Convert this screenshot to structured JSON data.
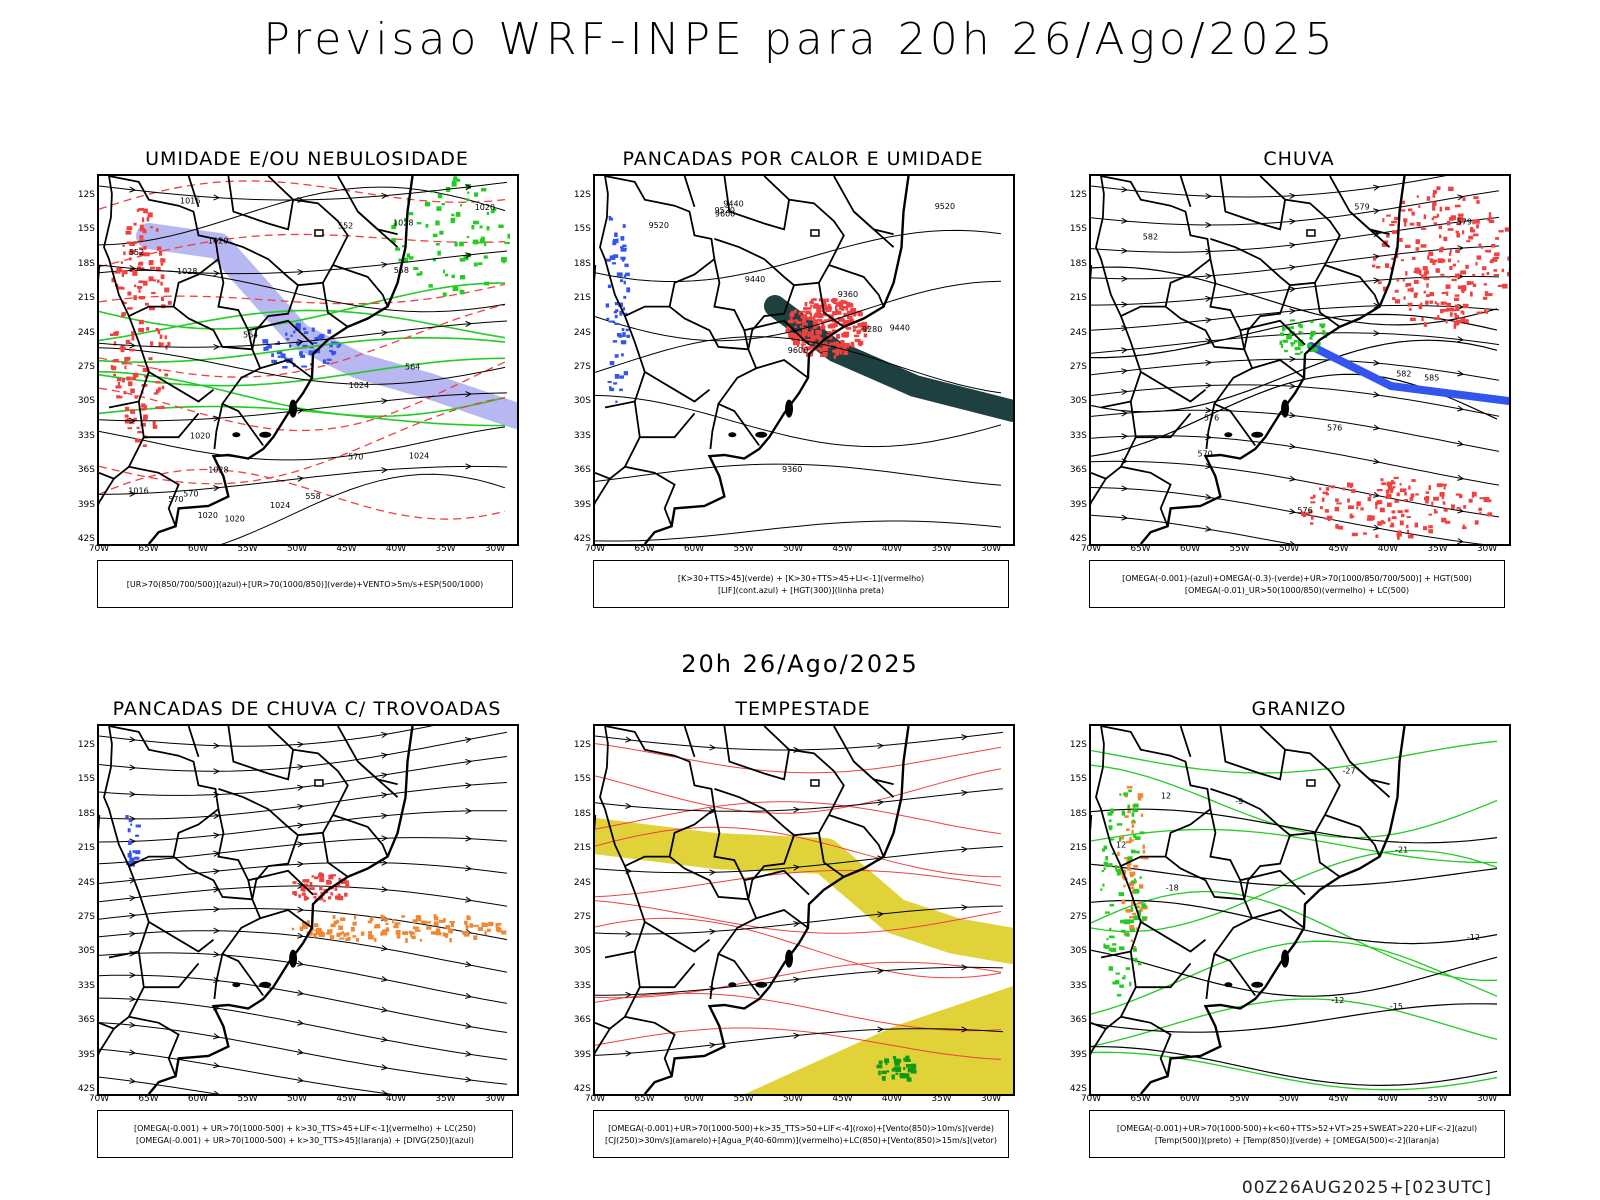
{
  "header": {
    "title": "Previsao WRF-INPE  para 20h 26/Ago/2025"
  },
  "middle": {
    "date": "20h 26/Ago/2025"
  },
  "footer": {
    "stamp": "00Z26AUG2025+[023UTC]"
  },
  "axes": {
    "lat": [
      "12S",
      "15S",
      "18S",
      "21S",
      "24S",
      "27S",
      "30S",
      "33S",
      "36S",
      "39S",
      "42S"
    ],
    "lon": [
      "70W",
      "65W",
      "60W",
      "55W",
      "50W",
      "45W",
      "40W",
      "35W",
      "30W"
    ]
  },
  "colors": {
    "red": "#f04040",
    "green": "#22cc22",
    "blue": "#3355ee",
    "lavender": "#aaaaee",
    "darkteal": "#1e4040",
    "yellow": "#e2d23a",
    "orange": "#ee8833",
    "darkgreen": "#119911"
  },
  "panels": [
    {
      "title": "UMIDADE E/OU NEBULOSIDADE",
      "legend": [
        "[UR>70(850/700/500)](azul)+[UR>70(1000/850)](verde)+VENTO>5m/s+ESP(500/1000)"
      ],
      "labels": [
        "1016",
        "1020",
        "1020",
        "1024",
        "1028",
        "1024",
        "1020",
        "1028",
        "1016",
        "570",
        "570",
        "564",
        "558",
        "552",
        "570",
        "564",
        "558",
        "552",
        "1028",
        "1020",
        "1020",
        "1024"
      ]
    },
    {
      "title": "PANCADAS POR CALOR E UMIDADE",
      "legend": [
        "[K>30+TTS>45](verde) + [K>30+TTS>45+LI<-1](vermelho)",
        "[LIF](cont.azul) + [HGT(300)](linha preta)"
      ],
      "labels": [
        "9600",
        "9520",
        "9440",
        "9520",
        "9600",
        "9520",
        "9440",
        "9440",
        "9360",
        "9360",
        "9280"
      ]
    },
    {
      "title": "CHUVA",
      "legend": [
        "[OMEGA(-0.001)-(azul)+OMEGA(-0.3)-(verde)+UR>70(1000/850/700/500)] + HGT(500)",
        "[OMEGA(-0.01)_UR>50(1000/850)(vermelho) + LC(500)"
      ],
      "labels": [
        "582",
        "585",
        "576",
        "576",
        "579",
        "582",
        "579",
        "576",
        "570"
      ]
    },
    {
      "title": "PANCADAS DE CHUVA C/ TROVOADAS",
      "legend": [
        "[OMEGA(-0.001) + UR>70(1000-500) + k>30_TTS>45+LIF<-1](vermelho) + LC(250)",
        "[OMEGA(-0.001) + UR>70(1000-500) + k>30_TTS>45](laranja) + [DIVG(250)](azul)"
      ],
      "labels": []
    },
    {
      "title": "TEMPESTADE",
      "legend": [
        "[OMEGA(-0.001)+UR>70(1000-500)+k>35_TTS>50+LIF<-4](roxo)+[Vento(850)>10m/s](verde)",
        "[CJ(250)>30m/s](amarelo)+[Agua_P(40-60mm)](vermelho)+LC(850)+[Vento(850)>15m/s](vetor)"
      ],
      "labels": []
    },
    {
      "title": "GRANIZO",
      "legend": [
        "[OMEGA(-0.001)+UR>70(1000-500)+k<60+TTS>52+VT>25+SWEAT>220+LIF<-2](azul)",
        "[Temp(500)](preto) + [Temp(850)](verde) + [OMEGA(500)<-2](laranja)"
      ],
      "labels": [
        "-9",
        "-12",
        "-12",
        "-15",
        "-21",
        "-18",
        "-27",
        "12",
        "12"
      ]
    }
  ]
}
